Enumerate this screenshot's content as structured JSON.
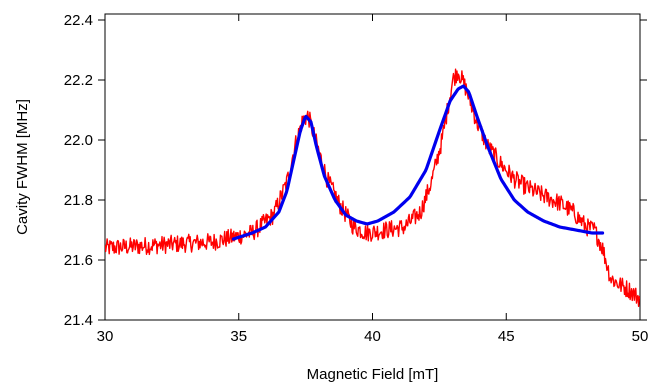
{
  "chart_data": {
    "type": "line",
    "title": "",
    "xlabel": "Magnetic Field [mT]",
    "ylabel": "Cavity FWHM [MHz]",
    "xlim": [
      30,
      50
    ],
    "ylim": [
      21.4,
      22.42
    ],
    "x_ticks": [
      30,
      35,
      40,
      45,
      50
    ],
    "x_tick_labels": [
      "30",
      "35",
      "40",
      "45",
      "50"
    ],
    "y_ticks": [
      21.4,
      21.6,
      21.8,
      22.0,
      22.2,
      22.4
    ],
    "y_tick_labels": [
      "21.4",
      "21.6",
      "21.8",
      "22.0",
      "22.2",
      "22.4"
    ],
    "grid": false,
    "legend": "none",
    "series": [
      {
        "style": "noisy data trace",
        "color": "#ff0000",
        "x_range": [
          30,
          50
        ],
        "noise_amplitude": 0.03,
        "x": [
          30.0,
          32.0,
          34.0,
          35.5,
          36.3,
          36.8,
          37.1,
          37.4,
          37.6,
          37.9,
          38.3,
          38.8,
          39.3,
          39.8,
          40.5,
          41.2,
          41.8,
          42.2,
          42.6,
          43.0,
          43.2,
          43.5,
          43.9,
          44.3,
          44.8,
          45.3,
          45.8,
          46.5,
          47.0,
          47.5,
          48.0,
          48.3,
          48.6,
          48.9,
          49.2,
          49.6,
          50.0
        ],
        "y": [
          21.64,
          21.65,
          21.66,
          21.69,
          21.75,
          21.86,
          21.98,
          22.07,
          22.08,
          21.99,
          21.87,
          21.78,
          21.71,
          21.69,
          21.7,
          21.71,
          21.76,
          21.86,
          22.0,
          22.2,
          22.23,
          22.17,
          22.06,
          21.98,
          21.92,
          21.87,
          21.84,
          21.81,
          21.79,
          21.76,
          21.71,
          21.7,
          21.64,
          21.54,
          21.52,
          21.5,
          21.47
        ]
      },
      {
        "style": "fit curve",
        "color": "#0000ee",
        "x": [
          34.8,
          35.5,
          36.0,
          36.5,
          36.8,
          37.1,
          37.3,
          37.5,
          37.7,
          37.9,
          38.2,
          38.6,
          39.0,
          39.4,
          39.8,
          40.2,
          40.8,
          41.4,
          42.0,
          42.5,
          42.9,
          43.2,
          43.4,
          43.6,
          43.9,
          44.3,
          44.8,
          45.3,
          45.8,
          46.4,
          47.0,
          47.6,
          48.2,
          48.6
        ],
        "y": [
          21.67,
          21.69,
          21.71,
          21.76,
          21.83,
          21.95,
          22.03,
          22.08,
          22.06,
          21.98,
          21.88,
          21.8,
          21.75,
          21.73,
          21.72,
          21.73,
          21.76,
          21.81,
          21.9,
          22.03,
          22.13,
          22.17,
          22.18,
          22.16,
          22.08,
          21.98,
          21.87,
          21.8,
          21.76,
          21.73,
          21.71,
          21.7,
          21.69,
          21.69
        ]
      }
    ]
  }
}
